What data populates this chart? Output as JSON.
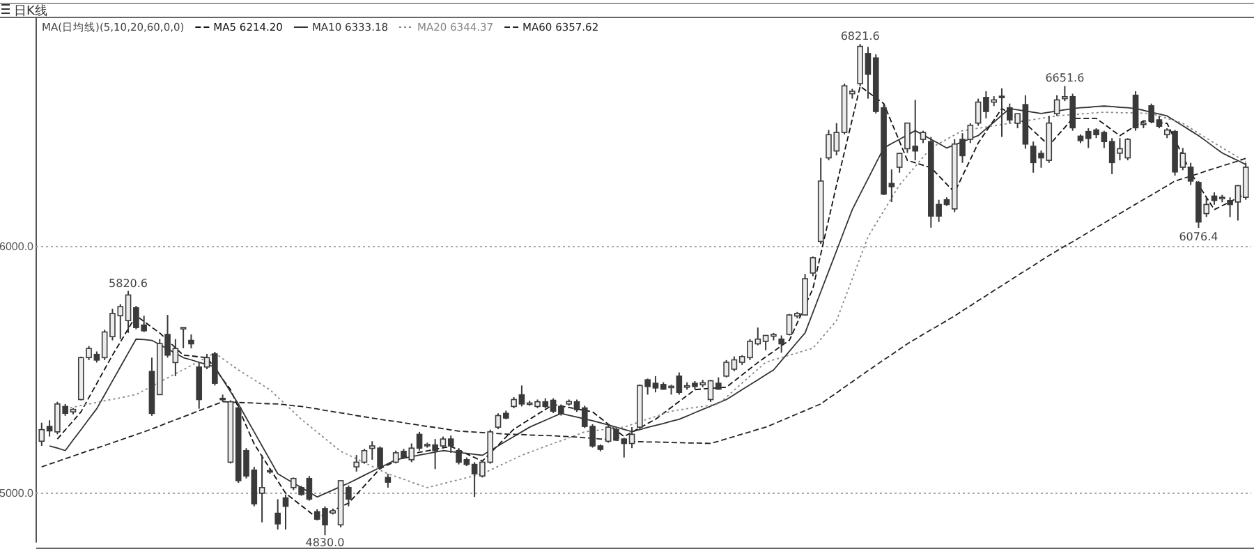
{
  "chart_data": {
    "type": "candlestick",
    "title": "日K线",
    "legend_title": "MA(日均线)(5,10,20,60,0,0)",
    "legend": "top left",
    "tick_labels": "y",
    "grid": "y",
    "color": "#3a3a3a",
    "ylim": [
      4800,
      6930
    ],
    "yticks": [
      {
        "value": 5000,
        "label": "5000.0"
      },
      {
        "value": 6000,
        "label": "6000.0"
      }
    ],
    "categories": [
      null,
      null,
      null,
      null,
      null,
      null,
      null,
      null,
      null,
      null,
      null,
      null,
      null,
      null,
      null,
      null,
      null,
      null,
      null,
      null,
      null,
      null,
      null,
      null,
      null,
      null,
      null,
      null,
      null,
      null,
      null,
      null,
      null,
      null,
      null,
      null,
      null,
      null,
      null,
      null,
      null,
      null,
      null,
      null,
      null,
      null,
      null,
      null,
      null,
      null,
      null,
      null,
      null,
      null,
      null,
      null,
      null,
      null,
      null,
      null,
      null,
      null,
      null,
      null,
      null,
      null,
      null,
      null,
      null,
      null,
      null,
      null,
      null,
      null,
      null,
      null,
      null,
      null,
      null,
      null,
      null,
      null,
      null,
      null,
      null,
      null,
      null,
      null,
      null,
      null,
      null,
      null,
      null,
      null,
      null,
      null,
      null,
      null,
      null,
      null,
      null,
      null,
      null,
      null,
      null,
      null,
      null,
      null,
      null,
      null,
      null,
      null,
      null,
      null,
      null,
      null,
      null,
      null,
      null,
      null,
      null,
      null,
      null,
      null,
      null,
      null,
      null,
      null,
      null,
      null,
      null,
      null,
      null,
      null,
      null,
      null,
      null,
      null,
      null,
      null,
      null,
      null,
      null,
      null,
      null,
      null,
      null,
      null,
      null,
      null,
      null,
      null,
      null,
      null
    ],
    "ohlc": [
      [
        5211,
        5286,
        5192,
        5258
      ],
      [
        5271,
        5296,
        5230,
        5253
      ],
      [
        5249,
        5371,
        5239,
        5362
      ],
      [
        5352,
        5362,
        5314,
        5324
      ],
      [
        5330,
        5345,
        5320,
        5340
      ],
      [
        5380,
        5554,
        5377,
        5550
      ],
      [
        5550,
        5597,
        5540,
        5587
      ],
      [
        5563,
        5575,
        5530,
        5540
      ],
      [
        5550,
        5663,
        5540,
        5654
      ],
      [
        5635,
        5748,
        5620,
        5729
      ],
      [
        5720,
        5767,
        5625,
        5757
      ],
      [
        5700,
        5820.6,
        5650,
        5804
      ],
      [
        5752,
        5760,
        5665,
        5672
      ],
      [
        5682,
        5720,
        5654,
        5659
      ],
      [
        5494,
        5550,
        5314,
        5324
      ],
      [
        5400,
        5625,
        5400,
        5607
      ],
      [
        5644,
        5723,
        5550,
        5560
      ],
      [
        5530,
        5625,
        5475,
        5587
      ],
      [
        5667,
        5672,
        5588,
        5672
      ],
      [
        5620,
        5644,
        5588,
        5606
      ],
      [
        5512,
        5531,
        5343,
        5380
      ],
      [
        5512,
        5565,
        5503,
        5550
      ],
      [
        5565,
        5573,
        5437,
        5446
      ],
      [
        5385,
        5400,
        5371,
        5384
      ],
      [
        5126,
        5377,
        5121,
        5371
      ],
      [
        5346,
        5362,
        5042,
        5051
      ],
      [
        5173,
        5183,
        5060,
        5070
      ],
      [
        5094,
        5107,
        4947,
        4957
      ],
      [
        5000,
        5155,
        4882,
        5023
      ],
      [
        5092,
        5098,
        5079,
        5088
      ],
      [
        4919,
        4976,
        4853,
        4876
      ],
      [
        4981,
        4995,
        4853,
        4947
      ],
      [
        5023,
        5064,
        5013,
        5060
      ],
      [
        5023,
        5030,
        4990,
        4995
      ],
      [
        5060,
        5070,
        4970,
        4976
      ],
      [
        4925,
        4935,
        4890,
        4895
      ],
      [
        4938,
        4947,
        4830,
        4872
      ],
      [
        4920,
        4938,
        4914,
        4929
      ],
      [
        4872,
        5051,
        4862,
        5051
      ],
      [
        5023,
        5032,
        4947,
        4976
      ],
      [
        5107,
        5155,
        5088,
        5126
      ],
      [
        5126,
        5180,
        5120,
        5173
      ],
      [
        5182,
        5211,
        5136,
        5192
      ],
      [
        5183,
        5190,
        5100,
        5107
      ],
      [
        5064,
        5079,
        5023,
        5045
      ],
      [
        5126,
        5173,
        5121,
        5164
      ],
      [
        5170,
        5180,
        5140,
        5145
      ],
      [
        5136,
        5202,
        5126,
        5183
      ],
      [
        5239,
        5249,
        5173,
        5183
      ],
      [
        5196,
        5205,
        5185,
        5198
      ],
      [
        5196,
        5220,
        5098,
        5173
      ],
      [
        5192,
        5230,
        5185,
        5220
      ],
      [
        5220,
        5234,
        5164,
        5192
      ],
      [
        5173,
        5183,
        5117,
        5126
      ],
      [
        5136,
        5145,
        5110,
        5117
      ],
      [
        5117,
        5126,
        4985,
        5079
      ],
      [
        5070,
        5136,
        5064,
        5126
      ],
      [
        5126,
        5258,
        5120,
        5249
      ],
      [
        5268,
        5324,
        5260,
        5315
      ],
      [
        5324,
        5335,
        5300,
        5305
      ],
      [
        5352,
        5390,
        5345,
        5380
      ],
      [
        5399,
        5437,
        5352,
        5362
      ],
      [
        5362,
        5375,
        5355,
        5366
      ],
      [
        5352,
        5380,
        5345,
        5371
      ],
      [
        5371,
        5385,
        5345,
        5352
      ],
      [
        5377,
        5385,
        5325,
        5333
      ],
      [
        5352,
        5360,
        5315,
        5324
      ],
      [
        5362,
        5380,
        5355,
        5372
      ],
      [
        5371,
        5380,
        5330,
        5339
      ],
      [
        5346,
        5355,
        5265,
        5271
      ],
      [
        5271,
        5280,
        5185,
        5192
      ],
      [
        5192,
        5198,
        5170,
        5178
      ],
      [
        5211,
        5280,
        5205,
        5268
      ],
      [
        5258,
        5265,
        5215,
        5220
      ],
      [
        5220,
        5225,
        5145,
        5202
      ],
      [
        5202,
        5268,
        5183,
        5239
      ],
      [
        5268,
        5441,
        5260,
        5437
      ],
      [
        5460,
        5465,
        5400,
        5433
      ],
      [
        5446,
        5475,
        5409,
        5427
      ],
      [
        5441,
        5450,
        5420,
        5422
      ],
      [
        5430,
        5440,
        5400,
        5434
      ],
      [
        5475,
        5490,
        5400,
        5409
      ],
      [
        5430,
        5450,
        5420,
        5436
      ],
      [
        5446,
        5455,
        5420,
        5433
      ],
      [
        5440,
        5460,
        5430,
        5448
      ],
      [
        5380,
        5460,
        5370,
        5456
      ],
      [
        5446,
        5470,
        5420,
        5422
      ],
      [
        5475,
        5540,
        5470,
        5531
      ],
      [
        5503,
        5555,
        5495,
        5541
      ],
      [
        5531,
        5560,
        5520,
        5554
      ],
      [
        5550,
        5625,
        5540,
        5616
      ],
      [
        5606,
        5672,
        5600,
        5625
      ],
      [
        5616,
        5640,
        5580,
        5640
      ],
      [
        5637,
        5650,
        5620,
        5644
      ],
      [
        5625,
        5640,
        5570,
        5606
      ],
      [
        5644,
        5727,
        5640,
        5723
      ],
      [
        5719,
        5735,
        5710,
        5729
      ],
      [
        5723,
        5889,
        5720,
        5870
      ],
      [
        5893,
        5960,
        5880,
        5955
      ],
      [
        6021,
        6360,
        6011,
        6266
      ],
      [
        6360,
        6473,
        6350,
        6454
      ],
      [
        6388,
        6501,
        6370,
        6463
      ],
      [
        6463,
        6661,
        6455,
        6652
      ],
      [
        6620,
        6640,
        6600,
        6630
      ],
      [
        6661,
        6821.6,
        6650,
        6812
      ],
      [
        6783,
        6810,
        6600,
        6699
      ],
      [
        6765,
        6780,
        6540,
        6548
      ],
      [
        6563,
        6576,
        6209,
        6213
      ],
      [
        6256,
        6313,
        6181,
        6243
      ],
      [
        6322,
        6380,
        6300,
        6378
      ],
      [
        6397,
        6501,
        6380,
        6501
      ],
      [
        6407,
        6595,
        6350,
        6388
      ],
      [
        6435,
        6470,
        6420,
        6463
      ],
      [
        6426,
        6445,
        6077,
        6124
      ],
      [
        6171,
        6190,
        6100,
        6124
      ],
      [
        6190,
        6200,
        6165,
        6171
      ],
      [
        6153,
        6436,
        6140,
        6416
      ],
      [
        6435,
        6460,
        6340,
        6369
      ],
      [
        6435,
        6500,
        6420,
        6492
      ],
      [
        6501,
        6600,
        6490,
        6586
      ],
      [
        6605,
        6630,
        6520,
        6548
      ],
      [
        6586,
        6610,
        6570,
        6595
      ],
      [
        6610,
        6642,
        6445,
        6605
      ],
      [
        6563,
        6580,
        6500,
        6514
      ],
      [
        6500,
        6540,
        6480,
        6539
      ],
      [
        6576,
        6614,
        6397,
        6416
      ],
      [
        6407,
        6426,
        6300,
        6341
      ],
      [
        6378,
        6390,
        6320,
        6360
      ],
      [
        6350,
        6530,
        6340,
        6501
      ],
      [
        6539,
        6614,
        6530,
        6595
      ],
      [
        6600,
        6651.6,
        6590,
        6608
      ],
      [
        6608,
        6620,
        6470,
        6482
      ],
      [
        6448,
        6455,
        6420,
        6430
      ],
      [
        6467,
        6480,
        6400,
        6439
      ],
      [
        6473,
        6480,
        6440,
        6454
      ],
      [
        6463,
        6470,
        6400,
        6426
      ],
      [
        6426,
        6440,
        6294,
        6341
      ],
      [
        6379,
        6440,
        6350,
        6397
      ],
      [
        6360,
        6440,
        6350,
        6435
      ],
      [
        6614,
        6630,
        6470,
        6482
      ],
      [
        6495,
        6510,
        6480,
        6501
      ],
      [
        6571,
        6580,
        6500,
        6510
      ],
      [
        6514,
        6530,
        6480,
        6488
      ],
      [
        6454,
        6480,
        6440,
        6473
      ],
      [
        6467,
        6473,
        6288,
        6303
      ],
      [
        6322,
        6400,
        6310,
        6378
      ],
      [
        6322,
        6340,
        6250,
        6266
      ],
      [
        6260,
        6266,
        6076.4,
        6100
      ],
      [
        6134,
        6200,
        6120,
        6171
      ],
      [
        6205,
        6220,
        6170,
        6187
      ],
      [
        6195,
        6210,
        6180,
        6200
      ],
      [
        6187,
        6200,
        6120,
        6171
      ],
      [
        6181,
        6250,
        6106,
        6247
      ],
      [
        6200,
        6340,
        6190,
        6322
      ]
    ],
    "series": [
      {
        "type": "line",
        "name": "MA5 6214.20",
        "color": "#111111",
        "line_style": "dashed",
        "values": [
          null,
          null,
          5220,
          5257,
          5293,
          5330,
          5388,
          5445,
          5503,
          5560,
          5613,
          5667,
          5720,
          5697,
          5673,
          5650,
          5620,
          5590,
          5560,
          5557,
          5553,
          5550,
          5507,
          5463,
          5420,
          5347,
          5273,
          5200,
          5150,
          5100,
          5050,
          5000,
          4975,
          4950,
          4925,
          4900,
          4915,
          4930,
          4945,
          4960,
          4995,
          5030,
          5065,
          5100,
          5115,
          5130,
          5145,
          5160,
          5166,
          5172,
          5178,
          5184,
          5190,
          5175,
          5160,
          5145,
          5130,
          5163,
          5195,
          5228,
          5260,
          5280,
          5300,
          5320,
          5340,
          5360,
          5354,
          5348,
          5342,
          5336,
          5330,
          5305,
          5280,
          5255,
          5230,
          5248,
          5265,
          5283,
          5300,
          5324,
          5348,
          5372,
          5396,
          5420,
          5423,
          5425,
          5428,
          5430,
          5455,
          5480,
          5505,
          5530,
          5553,
          5575,
          5598,
          5620,
          5690,
          5760,
          5830,
          5970,
          6110,
          6250,
          6383,
          6517,
          6650,
          6627,
          6603,
          6580,
          6503,
          6427,
          6350,
          6340,
          6330,
          6320,
          6287,
          6253,
          6220,
          6287,
          6353,
          6420,
          6467,
          6513,
          6560,
          6540,
          6520,
          6500,
          6470,
          6440,
          6410,
          6447,
          6483,
          6520,
          6520,
          6520,
          6520,
          6497,
          6473,
          6450,
          6470,
          6490,
          6510,
          6507,
          6503,
          6500,
          6433,
          6367,
          6300,
          6250,
          6200,
          6150,
          6166,
          6182,
          6198,
          6214
        ]
      },
      {
        "type": "line",
        "name": "MA10 6333.18",
        "color": "#333333",
        "line_style": "solid",
        "values": [
          null,
          5192,
          5183,
          5173,
          5216,
          5258,
          5301,
          5343,
          5399,
          5456,
          5512,
          5569,
          5625,
          5623,
          5620,
          5603,
          5585,
          5568,
          5550,
          5541,
          5531,
          5522,
          5512,
          5462,
          5412,
          5362,
          5305,
          5249,
          5192,
          5136,
          5079,
          5060,
          5041,
          5023,
          5004,
          4985,
          4999,
          5013,
          5027,
          5041,
          5057,
          5073,
          5089,
          5104,
          5120,
          5136,
          5142,
          5148,
          5155,
          5161,
          5167,
          5173,
          5169,
          5165,
          5162,
          5158,
          5154,
          5173,
          5192,
          5211,
          5230,
          5249,
          5268,
          5282,
          5296,
          5310,
          5324,
          5316,
          5309,
          5301,
          5294,
          5286,
          5277,
          5268,
          5259,
          5250,
          5258,
          5267,
          5275,
          5283,
          5292,
          5300,
          5313,
          5327,
          5340,
          5353,
          5367,
          5380,
          5400,
          5420,
          5440,
          5460,
          5480,
          5500,
          5538,
          5575,
          5613,
          5650,
          5733,
          5817,
          5900,
          5983,
          6067,
          6150,
          6213,
          6275,
          6338,
          6400,
          6418,
          6435,
          6453,
          6470,
          6453,
          6435,
          6418,
          6400,
          6413,
          6425,
          6438,
          6450,
          6478,
          6505,
          6533,
          6560,
          6555,
          6550,
          6545,
          6540,
          6545,
          6550,
          6555,
          6560,
          6563,
          6565,
          6568,
          6570,
          6568,
          6565,
          6563,
          6560,
          6553,
          6545,
          6538,
          6530,
          6510,
          6490,
          6470,
          6450,
          6427,
          6403,
          6380,
          6364,
          6349,
          6333
        ]
      },
      {
        "type": "line",
        "name": "MA20 6344.37",
        "color": "#888888",
        "line_style": "dotted",
        "values": [
          null,
          null,
          null,
          5343,
          5349,
          5356,
          5362,
          5368,
          5375,
          5381,
          5387,
          5394,
          5400,
          5417,
          5434,
          5451,
          5468,
          5485,
          5501,
          5518,
          5535,
          5552,
          5569,
          5546,
          5523,
          5500,
          5480,
          5460,
          5440,
          5420,
          5390,
          5360,
          5330,
          5300,
          5274,
          5248,
          5222,
          5196,
          5170,
          5155,
          5140,
          5124,
          5109,
          5094,
          5079,
          5068,
          5057,
          5045,
          5034,
          5023,
          5031,
          5039,
          5047,
          5055,
          5063,
          5071,
          5079,
          5094,
          5109,
          5124,
          5139,
          5154,
          5166,
          5178,
          5190,
          5202,
          5213,
          5225,
          5237,
          5249,
          5253,
          5257,
          5260,
          5264,
          5268,
          5279,
          5290,
          5301,
          5311,
          5322,
          5333,
          5338,
          5343,
          5348,
          5352,
          5357,
          5362,
          5390,
          5418,
          5447,
          5475,
          5503,
          5531,
          5541,
          5550,
          5560,
          5569,
          5579,
          5588,
          5625,
          5663,
          5700,
          5785,
          5870,
          5955,
          6040,
          6093,
          6145,
          6198,
          6250,
          6288,
          6325,
          6363,
          6400,
          6418,
          6435,
          6453,
          6470,
          6475,
          6480,
          6485,
          6490,
          6495,
          6500,
          6505,
          6510,
          6515,
          6520,
          6525,
          6530,
          6533,
          6535,
          6538,
          6540,
          6543,
          6545,
          6544,
          6543,
          6543,
          6542,
          6541,
          6540,
          6530,
          6520,
          6510,
          6500,
          6480,
          6460,
          6440,
          6420,
          6401,
          6382,
          6363,
          6344
        ]
      },
      {
        "type": "line",
        "name": "MA60 6357.62",
        "color": "#222222",
        "line_style": "dashed",
        "values": [
          5107,
          5118,
          5129,
          5140,
          5151,
          5162,
          5173,
          5183,
          5194,
          5205,
          5216,
          5227,
          5238,
          5249,
          5261,
          5273,
          5286,
          5298,
          5310,
          5322,
          5335,
          5347,
          5359,
          5371,
          5370,
          5368,
          5367,
          5366,
          5364,
          5363,
          5362,
          5359,
          5355,
          5352,
          5347,
          5342,
          5336,
          5331,
          5326,
          5321,
          5315,
          5310,
          5305,
          5300,
          5295,
          5291,
          5286,
          5281,
          5276,
          5271,
          5267,
          5262,
          5257,
          5252,
          5250,
          5248,
          5246,
          5244,
          5242,
          5240,
          5239,
          5238,
          5236,
          5235,
          5234,
          5233,
          5231,
          5230,
          5228,
          5225,
          5223,
          5220,
          5218,
          5215,
          5213,
          5210,
          5209,
          5208,
          5208,
          5207,
          5206,
          5205,
          5204,
          5204,
          5203,
          5202,
          5211,
          5221,
          5230,
          5240,
          5249,
          5259,
          5268,
          5281,
          5295,
          5308,
          5322,
          5335,
          5349,
          5362,
          5385,
          5407,
          5430,
          5452,
          5475,
          5497,
          5519,
          5541,
          5562,
          5584,
          5606,
          5625,
          5644,
          5663,
          5681,
          5700,
          5719,
          5740,
          5760,
          5781,
          5801,
          5822,
          5842,
          5862,
          5883,
          5903,
          5923,
          5944,
          5964,
          5983,
          6002,
          6020,
          6039,
          6058,
          6077,
          6096,
          6115,
          6134,
          6153,
          6172,
          6191,
          6209,
          6228,
          6247,
          6266,
          6276,
          6286,
          6296,
          6307,
          6317,
          6327,
          6337,
          6347,
          6358
        ]
      }
    ],
    "annotations": [
      {
        "text": "5820.6",
        "y": 5820.6
      },
      {
        "text": "4830.0",
        "y": 4830
      },
      {
        "text": "6821.6",
        "y": 6821.6
      },
      {
        "text": "6651.6",
        "y": 6651.6
      },
      {
        "text": "6076.4",
        "y": 6076.4
      }
    ]
  }
}
